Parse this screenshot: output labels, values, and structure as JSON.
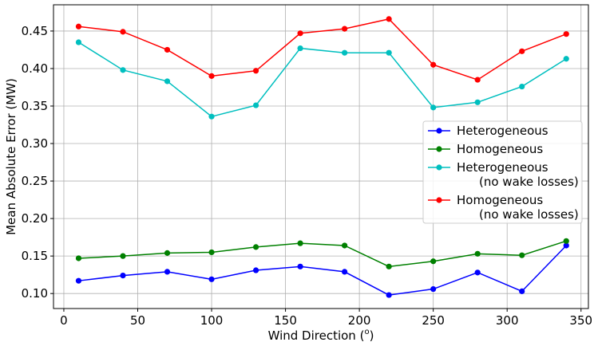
{
  "chart_data": {
    "type": "line",
    "title": "",
    "xlabel": "Wind Direction (",
    "xlabel_sup": "o",
    "xlabel_end": ")",
    "ylabel": "Mean Absolute Error (MW)",
    "xlim": [
      -7,
      355
    ],
    "ylim": [
      0.08,
      0.485
    ],
    "grid": true,
    "legend_position": "center-right",
    "xticks": [
      0,
      50,
      100,
      150,
      200,
      250,
      300,
      350
    ],
    "xtick_labels": [
      "0",
      "50",
      "100",
      "150",
      "200",
      "250",
      "300",
      "350"
    ],
    "yticks": [
      0.1,
      0.15,
      0.2,
      0.25,
      0.3,
      0.35,
      0.4,
      0.45
    ],
    "ytick_labels": [
      "0.10",
      "0.15",
      "0.20",
      "0.25",
      "0.30",
      "0.35",
      "0.40",
      "0.45"
    ],
    "x": [
      10,
      40,
      70,
      100,
      130,
      160,
      190,
      220,
      250,
      280,
      310,
      340
    ],
    "series": [
      {
        "name": "Heterogeneous",
        "legend_lines": [
          "Heterogeneous"
        ],
        "color": "#0000ff",
        "values": [
          0.117,
          0.124,
          0.129,
          0.119,
          0.131,
          0.136,
          0.129,
          0.098,
          0.106,
          0.128,
          0.103,
          0.164
        ]
      },
      {
        "name": "Homogeneous",
        "legend_lines": [
          "Homogeneous"
        ],
        "color": "#008000",
        "values": [
          0.147,
          0.15,
          0.154,
          0.155,
          0.162,
          0.167,
          0.164,
          0.136,
          0.143,
          0.153,
          0.151,
          0.17
        ]
      },
      {
        "name": "Heterogeneous (no wake losses)",
        "legend_lines": [
          "Heterogeneous",
          "(no wake losses)"
        ],
        "color": "#00bfbf",
        "values": [
          0.435,
          0.398,
          0.383,
          0.336,
          0.351,
          0.427,
          0.421,
          0.421,
          0.348,
          0.355,
          0.376,
          0.413
        ]
      },
      {
        "name": "Homogeneous (no wake losses)",
        "legend_lines": [
          "Homogeneous",
          "(no wake losses)"
        ],
        "color": "#ff0000",
        "values": [
          0.456,
          0.449,
          0.425,
          0.39,
          0.397,
          0.447,
          0.453,
          0.466,
          0.405,
          0.385,
          0.423,
          0.446
        ]
      }
    ]
  }
}
